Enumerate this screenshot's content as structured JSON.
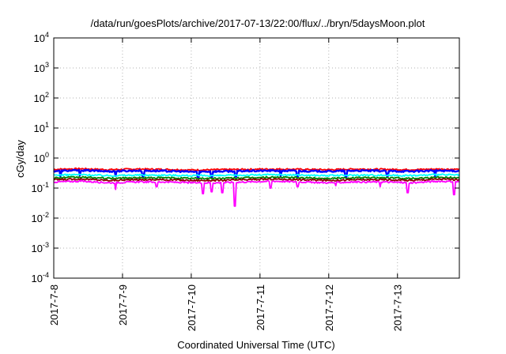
{
  "chart_data": {
    "type": "line",
    "title": "/data/run/goesPlots/archive/2017-07-13/22:00/flux/../bryn/5daysMoon.plot",
    "xlabel": "Coordinated Universal Time (UTC)",
    "ylabel": "cGy/day",
    "yscale": "log",
    "ylim": [
      0.0001,
      10000
    ],
    "xlim": [
      0,
      5.9
    ],
    "grid": true,
    "legend": "none",
    "x_ticks": [
      {
        "value": 0,
        "label": "2017-7-8"
      },
      {
        "value": 1,
        "label": "2017-7-9"
      },
      {
        "value": 2,
        "label": "2017-7-10"
      },
      {
        "value": 3,
        "label": "2017-7-11"
      },
      {
        "value": 4,
        "label": "2017-7-12"
      },
      {
        "value": 5,
        "label": "2017-7-13"
      }
    ],
    "y_ticks": [
      {
        "value": 0.0001,
        "base": "10",
        "exp": "-4"
      },
      {
        "value": 0.001,
        "base": "10",
        "exp": "-3"
      },
      {
        "value": 0.01,
        "base": "10",
        "exp": "-2"
      },
      {
        "value": 0.1,
        "base": "10",
        "exp": "-1"
      },
      {
        "value": 1,
        "base": "10",
        "exp": "0"
      },
      {
        "value": 10,
        "base": "10",
        "exp": "1"
      },
      {
        "value": 100,
        "base": "10",
        "exp": "2"
      },
      {
        "value": 1000,
        "base": "10",
        "exp": "3"
      },
      {
        "value": 10000,
        "base": "10",
        "exp": "4"
      }
    ],
    "series": [
      {
        "color": "#ff0000",
        "base": 0.42,
        "x": [
          0,
          0.4,
          0.8,
          1.2,
          1.6,
          2.0,
          2.4,
          2.8,
          3.2,
          3.6,
          4.0,
          4.4,
          4.8,
          5.2,
          5.6,
          5.9
        ],
        "values": [
          0.42,
          0.44,
          0.41,
          0.43,
          0.42,
          0.4,
          0.41,
          0.42,
          0.43,
          0.42,
          0.41,
          0.43,
          0.42,
          0.41,
          0.43,
          0.42
        ],
        "dips": []
      },
      {
        "color": "#0000ff",
        "base": 0.37,
        "x": [
          0,
          0.4,
          0.8,
          1.2,
          1.6,
          2.0,
          2.4,
          2.8,
          3.2,
          3.6,
          4.0,
          4.4,
          4.8,
          5.2,
          5.6,
          5.9
        ],
        "values": [
          0.37,
          0.39,
          0.36,
          0.38,
          0.37,
          0.35,
          0.36,
          0.37,
          0.38,
          0.37,
          0.36,
          0.38,
          0.37,
          0.36,
          0.38,
          0.37
        ],
        "dips": [
          [
            0.1,
            0.24
          ],
          [
            0.38,
            0.26
          ],
          [
            0.9,
            0.25
          ],
          [
            1.3,
            0.24
          ],
          [
            2.1,
            0.22
          ],
          [
            2.3,
            0.23
          ],
          [
            2.65,
            0.24
          ],
          [
            3.3,
            0.25
          ],
          [
            3.55,
            0.24
          ],
          [
            4.25,
            0.23
          ],
          [
            4.85,
            0.25
          ],
          [
            5.55,
            0.24
          ]
        ]
      },
      {
        "color": "#00ffff",
        "base": 0.27,
        "x": [
          0,
          0.4,
          0.8,
          1.2,
          1.6,
          2.0,
          2.4,
          2.8,
          3.2,
          3.6,
          4.0,
          4.4,
          4.8,
          5.2,
          5.6,
          5.9
        ],
        "values": [
          0.27,
          0.28,
          0.26,
          0.27,
          0.27,
          0.26,
          0.26,
          0.27,
          0.28,
          0.27,
          0.26,
          0.27,
          0.27,
          0.26,
          0.28,
          0.27
        ],
        "dips": []
      },
      {
        "color": "#008000",
        "base": 0.22,
        "x": [
          0,
          0.4,
          0.8,
          1.2,
          1.6,
          2.0,
          2.4,
          2.8,
          3.2,
          3.6,
          4.0,
          4.4,
          4.8,
          5.2,
          5.6,
          5.9
        ],
        "values": [
          0.22,
          0.23,
          0.21,
          0.22,
          0.22,
          0.21,
          0.21,
          0.22,
          0.23,
          0.22,
          0.21,
          0.22,
          0.22,
          0.21,
          0.23,
          0.22
        ],
        "dips": []
      },
      {
        "color": "#8b0000",
        "base": 0.19,
        "x": [
          0,
          0.4,
          0.8,
          1.2,
          1.6,
          2.0,
          2.4,
          2.8,
          3.2,
          3.6,
          4.0,
          4.4,
          4.8,
          5.2,
          5.6,
          5.9
        ],
        "values": [
          0.19,
          0.2,
          0.18,
          0.19,
          0.19,
          0.18,
          0.18,
          0.19,
          0.2,
          0.19,
          0.18,
          0.19,
          0.19,
          0.18,
          0.2,
          0.19
        ],
        "dips": []
      },
      {
        "color": "#ff00ff",
        "base": 0.16,
        "x": [
          0,
          0.4,
          0.8,
          1.2,
          1.6,
          2.0,
          2.4,
          2.8,
          3.2,
          3.6,
          4.0,
          4.4,
          4.8,
          5.2,
          5.6,
          5.9
        ],
        "values": [
          0.16,
          0.17,
          0.15,
          0.16,
          0.16,
          0.15,
          0.15,
          0.16,
          0.17,
          0.16,
          0.15,
          0.16,
          0.16,
          0.15,
          0.17,
          0.16
        ],
        "dips": [
          [
            0.9,
            0.09
          ],
          [
            1.5,
            0.11
          ],
          [
            2.17,
            0.065
          ],
          [
            2.3,
            0.075
          ],
          [
            2.45,
            0.07
          ],
          [
            2.63,
            0.025
          ],
          [
            3.15,
            0.1
          ],
          [
            3.55,
            0.11
          ],
          [
            4.1,
            0.12
          ],
          [
            4.75,
            0.11
          ],
          [
            5.15,
            0.07
          ],
          [
            5.82,
            0.06
          ]
        ]
      }
    ]
  }
}
